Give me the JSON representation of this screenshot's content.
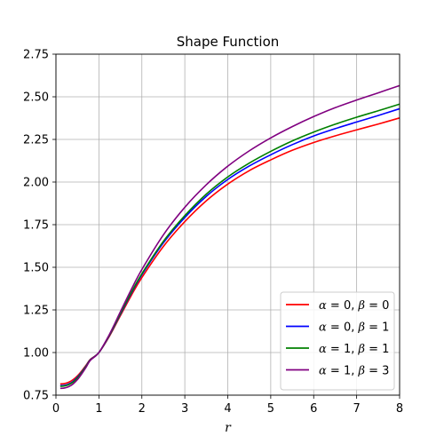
{
  "chart_data": {
    "type": "line",
    "title": "Shape Function",
    "xlabel": "r",
    "ylabel": "",
    "xlim": [
      0,
      8
    ],
    "ylim": [
      0.75,
      2.75
    ],
    "xticks": [
      0,
      1,
      2,
      3,
      4,
      5,
      6,
      7,
      8
    ],
    "xtick_labels": [
      "0",
      "1",
      "2",
      "3",
      "4",
      "5",
      "6",
      "7",
      "8"
    ],
    "yticks": [
      0.75,
      1.0,
      1.25,
      1.5,
      1.75,
      2.0,
      2.25,
      2.5,
      2.75
    ],
    "ytick_labels": [
      "0.75",
      "1.00",
      "1.25",
      "1.50",
      "1.75",
      "2.00",
      "2.25",
      "2.50",
      "2.75"
    ],
    "grid": true,
    "legend_position": "lower-right",
    "x": [
      0.1,
      0.2,
      0.3,
      0.4,
      0.5,
      0.6,
      0.7,
      0.8,
      1.0,
      1.25,
      1.5,
      1.75,
      2.0,
      2.5,
      3.0,
      3.5,
      4.0,
      4.5,
      5.0,
      5.5,
      6.0,
      6.5,
      7.0,
      7.5,
      8.0
    ],
    "series": [
      {
        "name": "α = 0, β = 0",
        "legend_parts": [
          "α",
          " = 0, ",
          "β",
          " = 0"
        ],
        "color": "#ff0000",
        "values": [
          0.816,
          0.818,
          0.826,
          0.841,
          0.863,
          0.892,
          0.925,
          0.96,
          1.0,
          1.098,
          1.216,
          1.333,
          1.44,
          1.622,
          1.768,
          1.89,
          1.988,
          2.067,
          2.13,
          2.186,
          2.232,
          2.271,
          2.306,
          2.34,
          2.376
        ]
      },
      {
        "name": "α = 0, β = 1",
        "legend_parts": [
          "α",
          " = 0, ",
          "β",
          " = 1"
        ],
        "color": "#0000ff",
        "values": [
          0.806,
          0.808,
          0.816,
          0.831,
          0.855,
          0.886,
          0.921,
          0.958,
          1.0,
          1.102,
          1.224,
          1.345,
          1.456,
          1.643,
          1.792,
          1.916,
          2.015,
          2.094,
          2.16,
          2.219,
          2.27,
          2.313,
          2.352,
          2.39,
          2.43
        ]
      },
      {
        "name": "α = 1, β = 1",
        "legend_parts": [
          "α",
          " = 1, ",
          "β",
          " = 1"
        ],
        "color": "#008000",
        "values": [
          0.802,
          0.804,
          0.812,
          0.827,
          0.851,
          0.883,
          0.919,
          0.957,
          1.0,
          1.104,
          1.228,
          1.35,
          1.462,
          1.652,
          1.803,
          1.929,
          2.03,
          2.111,
          2.18,
          2.241,
          2.293,
          2.339,
          2.38,
          2.418,
          2.457
        ]
      },
      {
        "name": "α = 1, β = 3",
        "legend_parts": [
          "α",
          " = 1, ",
          "β",
          " = 3"
        ],
        "color": "#800080",
        "values": [
          0.79,
          0.792,
          0.8,
          0.816,
          0.841,
          0.875,
          0.913,
          0.954,
          1.0,
          1.109,
          1.239,
          1.368,
          1.487,
          1.69,
          1.852,
          1.984,
          2.093,
          2.183,
          2.259,
          2.325,
          2.384,
          2.436,
          2.481,
          2.523,
          2.566
        ]
      }
    ]
  }
}
